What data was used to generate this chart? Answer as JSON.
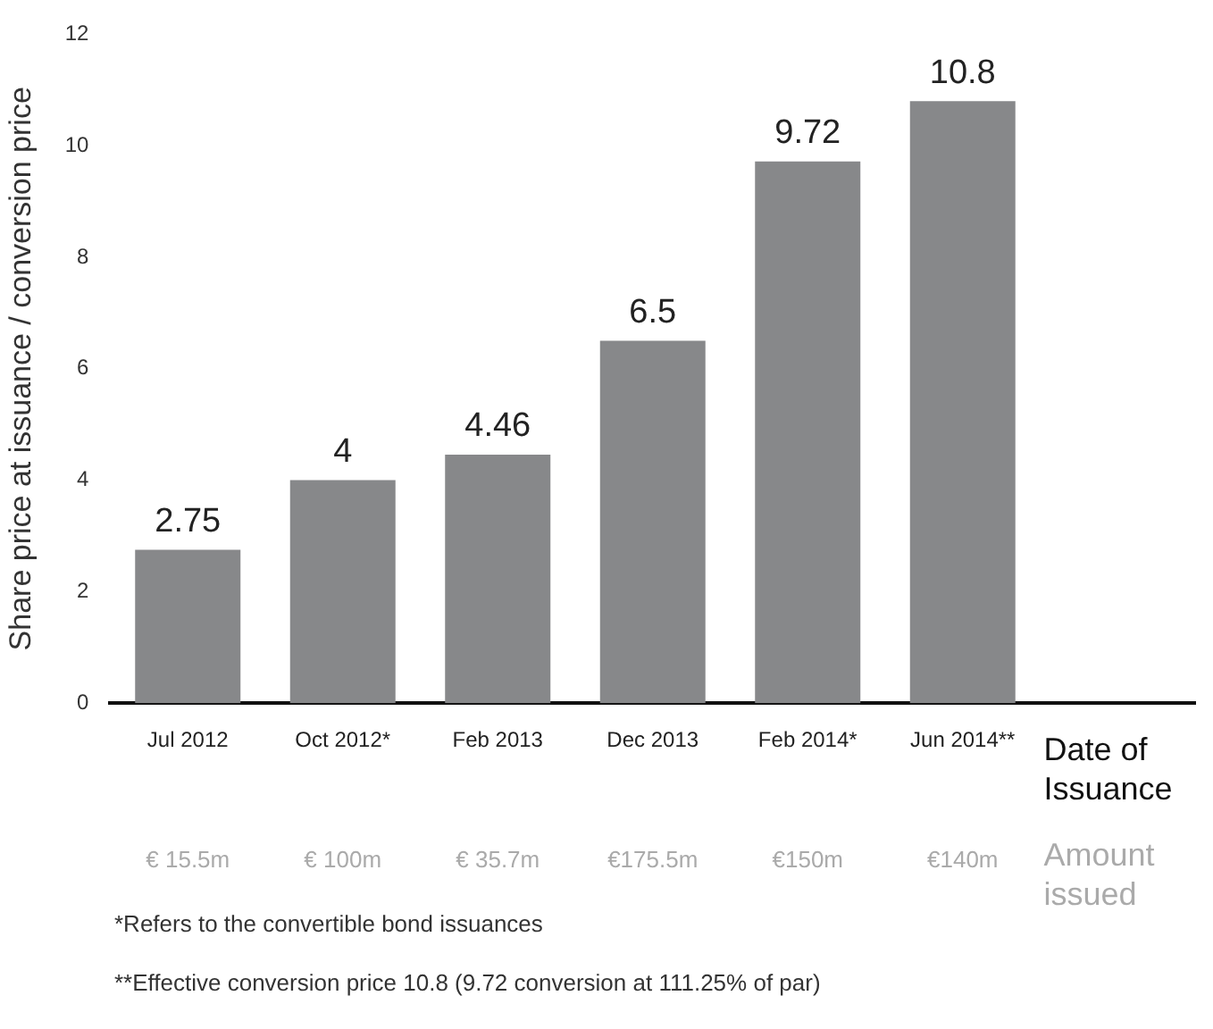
{
  "chart_data": {
    "type": "bar",
    "ylabel": "Share price at issuance / conversion price",
    "xlabel": "Date of Issuance",
    "categories": [
      "Jul 2012",
      "Oct 2012*",
      "Feb 2013",
      "Dec 2013",
      "Feb 2014*",
      "Jun 2014**",
      null
    ],
    "values": [
      2.75,
      4,
      4.46,
      6.5,
      9.72,
      10.8,
      null
    ],
    "color": "#87888a",
    "ylim": [
      0,
      12
    ],
    "yticks": [
      0,
      2,
      4,
      6,
      8,
      10,
      12
    ],
    "grid": false,
    "legend": false,
    "data_labels": true,
    "annotations": [
      "€ 15.5m",
      "€ 100m",
      "€ 35.7m",
      "€175.5m",
      "€150m",
      "€140m",
      "Amount issued",
      "*Refers to the convertible bond issuances",
      "**Effective conversion price 10.8 (9.72 conversion at 111.25% of par)"
    ]
  }
}
